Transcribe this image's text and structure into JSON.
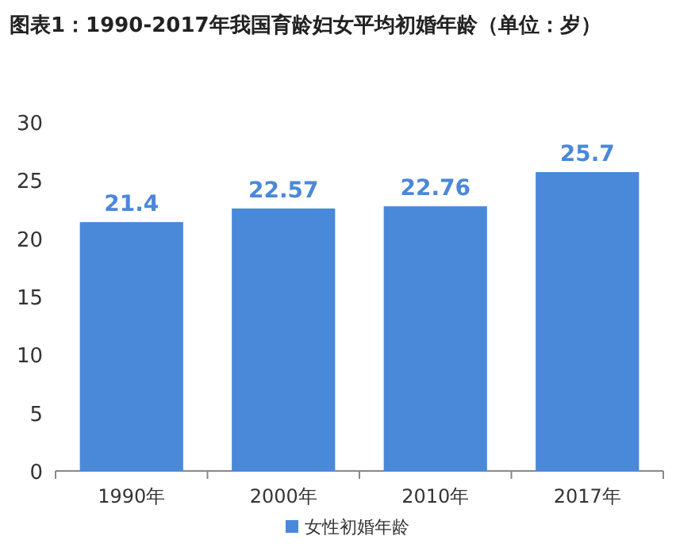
{
  "chart_data": {
    "type": "bar",
    "title": "图表1：1990-2017年我国育龄妇女平均初婚年龄（单位：岁）",
    "categories": [
      "1990年",
      "2000年",
      "2010年",
      "2017年"
    ],
    "series": [
      {
        "name": "女性初婚年龄",
        "color": "#4a88d9",
        "values": [
          21.4,
          22.57,
          22.76,
          25.7
        ]
      }
    ],
    "ylim": [
      0,
      30
    ],
    "yticks": [
      0,
      5,
      10,
      15,
      20,
      25,
      30
    ],
    "data_labels": true,
    "legend": "bottom"
  }
}
